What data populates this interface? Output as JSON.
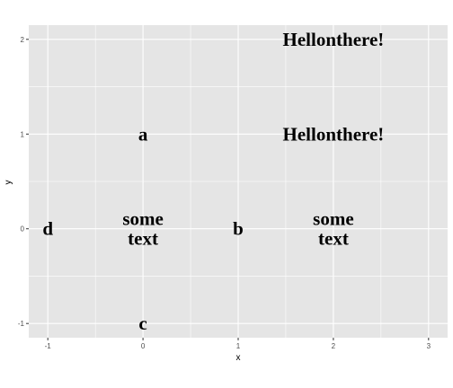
{
  "chart_data": {
    "type": "scatter",
    "xlabel": "x",
    "ylabel": "y",
    "xlim": [
      -1.2,
      3.2
    ],
    "ylim": [
      -1.15,
      2.15
    ],
    "x_ticks": [
      -1,
      0,
      1,
      2,
      3
    ],
    "y_ticks": [
      -1,
      0,
      1,
      2
    ],
    "grid": true,
    "background": "#e5e5e5",
    "grid_color": "#ffffff",
    "points": [
      {
        "x": -1,
        "y": 0,
        "label": "d"
      },
      {
        "x": 0,
        "y": 1,
        "label": "a"
      },
      {
        "x": 0,
        "y": 0,
        "label": "some\ntext"
      },
      {
        "x": 0,
        "y": -1,
        "label": "c"
      },
      {
        "x": 1,
        "y": 0,
        "label": "b"
      },
      {
        "x": 2,
        "y": 2,
        "label": "Hellonthere!"
      },
      {
        "x": 2,
        "y": 1,
        "label": "Hellonthere!"
      },
      {
        "x": 2,
        "y": 0,
        "label": "some\ntext"
      }
    ]
  }
}
